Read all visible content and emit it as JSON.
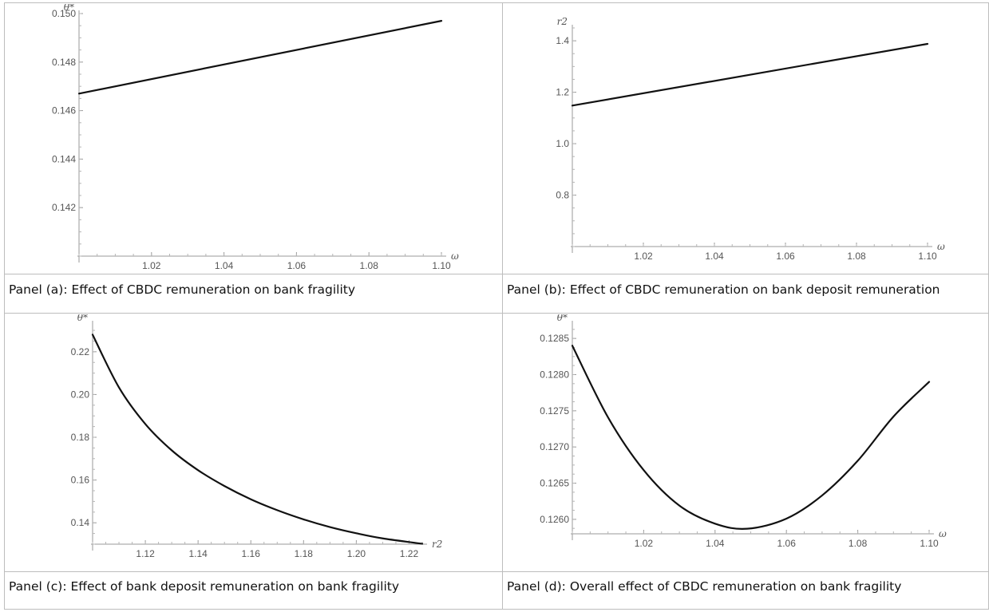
{
  "chart_data": [
    {
      "type": "line",
      "xlabel": "ω",
      "ylabel": "θ*",
      "xlim": [
        1.0,
        1.1
      ],
      "ylim": [
        0.14,
        0.15
      ],
      "xticks": [
        1.02,
        1.04,
        1.06,
        1.08,
        1.1
      ],
      "xtick_labels": [
        "1.02",
        "1.04",
        "1.06",
        "1.08",
        "1.10"
      ],
      "yticks": [
        0.142,
        0.144,
        0.146,
        0.148,
        0.15
      ],
      "ytick_labels": [
        "0.142",
        "0.144",
        "0.146",
        "0.148",
        "0.150"
      ],
      "x": [
        1.0,
        1.1
      ],
      "y": [
        0.1467,
        0.1497
      ],
      "caption": "Panel (a): Effect of CBDC remuneration on bank fragility"
    },
    {
      "type": "line",
      "xlabel": "ω",
      "ylabel": "r2",
      "xlim": [
        1.0,
        1.1
      ],
      "ylim": [
        0.6,
        1.45
      ],
      "xticks": [
        1.02,
        1.04,
        1.06,
        1.08,
        1.1
      ],
      "xtick_labels": [
        "1.02",
        "1.04",
        "1.06",
        "1.08",
        "1.10"
      ],
      "yticks": [
        0.8,
        1.0,
        1.2,
        1.4
      ],
      "ytick_labels": [
        "0.8",
        "1.0",
        "1.2",
        "1.4"
      ],
      "x": [
        1.0,
        1.1
      ],
      "y": [
        1.148,
        1.388
      ],
      "caption": "Panel (b): Effect of CBDC remuneration on bank deposit remuneration"
    },
    {
      "type": "line",
      "xlabel": "r2",
      "ylabel": "θ*",
      "xlim": [
        1.1,
        1.225
      ],
      "ylim": [
        0.13,
        0.233
      ],
      "xticks": [
        1.12,
        1.14,
        1.16,
        1.18,
        1.2,
        1.22
      ],
      "xtick_labels": [
        "1.12",
        "1.14",
        "1.16",
        "1.18",
        "1.20",
        "1.22"
      ],
      "yticks": [
        0.14,
        0.16,
        0.18,
        0.2,
        0.22
      ],
      "ytick_labels": [
        "0.14",
        "0.16",
        "0.18",
        "0.20",
        "0.22"
      ],
      "x": [
        1.1,
        1.11,
        1.12,
        1.13,
        1.14,
        1.15,
        1.16,
        1.17,
        1.18,
        1.19,
        1.2,
        1.21,
        1.225
      ],
      "y": [
        0.228,
        0.2033,
        0.1862,
        0.1739,
        0.1646,
        0.1572,
        0.151,
        0.1459,
        0.1416,
        0.138,
        0.1351,
        0.1327,
        0.1302
      ],
      "caption": "Panel (c): Effect of bank deposit remuneration on bank fragility"
    },
    {
      "type": "line",
      "xlabel": "ω",
      "ylabel": "θ*",
      "xlim": [
        1.0,
        1.1
      ],
      "ylim": [
        0.1258,
        0.1287
      ],
      "xticks": [
        1.02,
        1.04,
        1.06,
        1.08,
        1.1
      ],
      "xtick_labels": [
        "1.02",
        "1.04",
        "1.06",
        "1.08",
        "1.10"
      ],
      "yticks": [
        0.126,
        0.1265,
        0.127,
        0.1275,
        0.128,
        0.1285
      ],
      "ytick_labels": [
        "0.1260",
        "0.1265",
        "0.1270",
        "0.1275",
        "0.1280",
        "0.1285"
      ],
      "x": [
        1.0,
        1.01,
        1.02,
        1.03,
        1.04,
        1.049,
        1.06,
        1.07,
        1.08,
        1.09,
        1.1
      ],
      "y": [
        0.1284,
        0.12741,
        0.12668,
        0.12619,
        0.12594,
        0.12587,
        0.12601,
        0.12633,
        0.12681,
        0.12742,
        0.1279
      ],
      "caption": "Panel (d): Overall effect of CBDC remuneration on bank fragility"
    }
  ]
}
